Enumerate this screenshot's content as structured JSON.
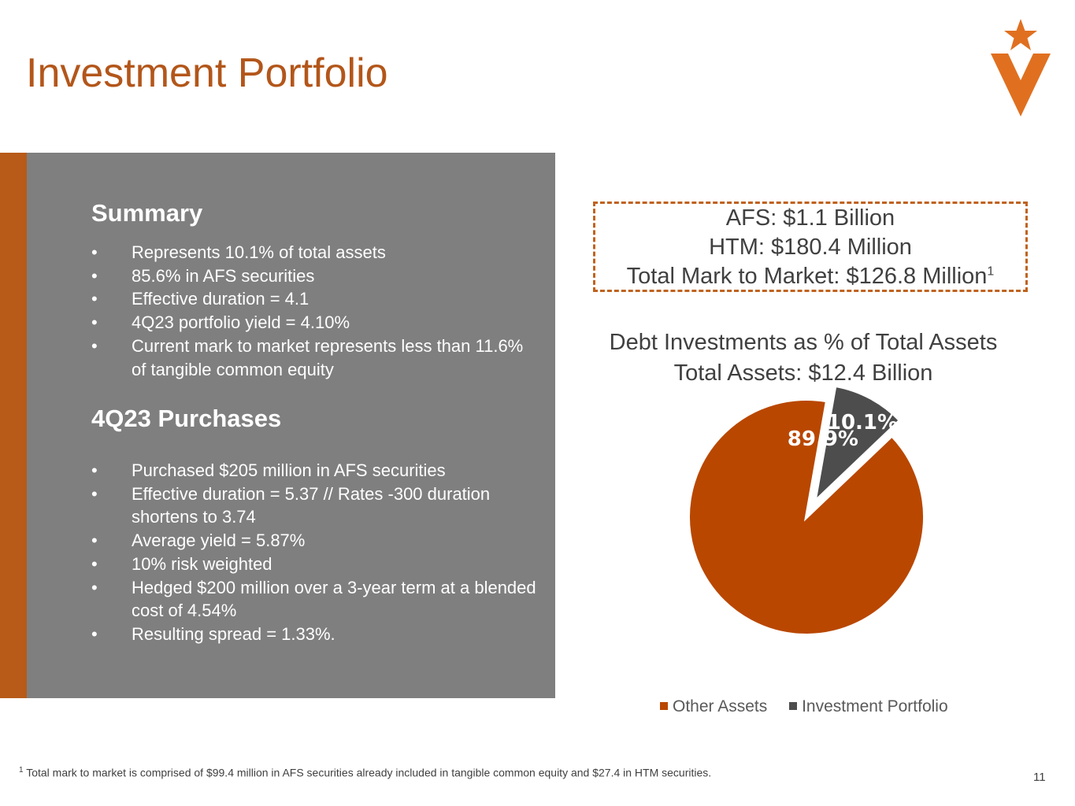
{
  "page": {
    "title": "Investment Portfolio",
    "page_number": "11",
    "brand_color": "#b3561a"
  },
  "logo": {
    "icon": "star-v-logo-icon",
    "color": "#e07020"
  },
  "summary": {
    "heading": "Summary",
    "bullets": [
      "Represents 10.1% of total assets",
      "85.6% in AFS securities",
      "Effective duration = 4.1",
      "4Q23 portfolio yield = 4.10%",
      "Current mark to market represents less than 11.6% of tangible common equity"
    ]
  },
  "purchases": {
    "heading": "4Q23 Purchases",
    "bullets": [
      "Purchased $205 million in AFS securities",
      "Effective duration = 5.37 // Rates -300 duration shortens to 3.74",
      "Average yield = 5.87%",
      "10% risk weighted",
      "Hedged $200 million over a 3-year term at a blended cost of 4.54%",
      "Resulting spread = 1.33%."
    ]
  },
  "callout": {
    "afs": "AFS: $1.1 Billion",
    "htm": "HTM: $180.4 Million",
    "mtm": "Total Mark to Market: $126.8 Million",
    "mtm_footnote_marker": "1"
  },
  "chart_data": {
    "type": "pie",
    "title": "Debt Investments as % of Total Assets",
    "subtitle": "Total Assets: $12.4 Billion",
    "categories": [
      "Other Assets",
      "Investment Portfolio"
    ],
    "values": [
      89.9,
      10.1
    ],
    "data_labels": [
      "89.9%",
      "10.1%"
    ],
    "colors": [
      "#b94700",
      "#4d4d4d"
    ],
    "exploded": "Investment Portfolio",
    "legend_position": "bottom"
  },
  "footnote": {
    "marker": "1",
    "text": "Total mark to market is comprised of $99.4 million in AFS securities already included in tangible common equity and $27.4 in HTM securities."
  }
}
